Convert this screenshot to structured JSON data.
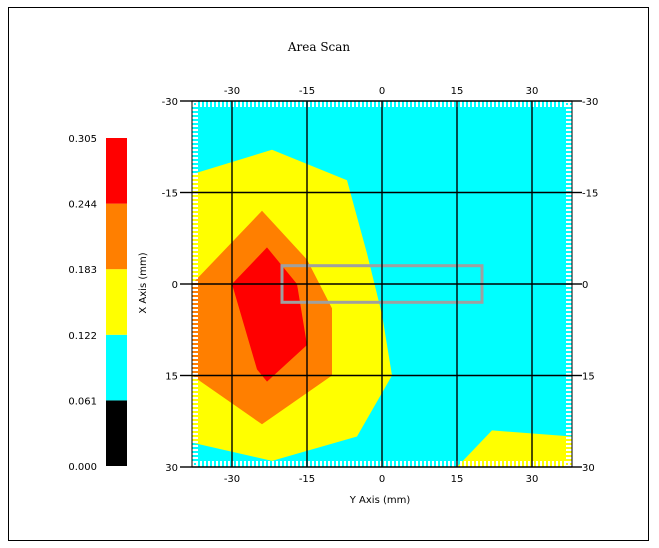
{
  "chart_data": {
    "type": "heatmap",
    "title": "Area Scan",
    "xlabel": "Y Axis (mm)",
    "ylabel": "X Axis (mm)",
    "xlim": [
      -38,
      38
    ],
    "ylim": [
      -30,
      30
    ],
    "x_ticks": [
      -30,
      -15,
      0,
      15,
      30
    ],
    "y_ticks": [
      -30,
      -15,
      0,
      15,
      30
    ],
    "x_tick_labels": [
      "-30",
      "-15",
      "0",
      "15",
      "30"
    ],
    "y_tick_labels": [
      "-30",
      "-15",
      "0",
      "15",
      "30"
    ],
    "colorbar": {
      "levels": [
        {
          "label": "0.000",
          "value": 0.0
        },
        {
          "label": "0.061",
          "value": 0.061
        },
        {
          "label": "0.122",
          "value": 0.122
        },
        {
          "label": "0.183",
          "value": 0.183
        },
        {
          "label": "0.244",
          "value": 0.244
        },
        {
          "label": "0.305",
          "value": 0.305
        }
      ],
      "colors": [
        "#000000",
        "#00ffff",
        "#ffff00",
        "#ff7f00",
        "#ff0000"
      ]
    },
    "background_color": "#00ffff",
    "contours": [
      {
        "name": "0.122-0.183",
        "color": "#ffff00",
        "points": [
          [
            -38,
            -18
          ],
          [
            -22,
            -22
          ],
          [
            -7,
            -17
          ],
          [
            -3,
            -5
          ],
          [
            0,
            5
          ],
          [
            2,
            15
          ],
          [
            -5,
            25
          ],
          [
            -22,
            29
          ],
          [
            -38,
            26
          ]
        ]
      },
      {
        "name": "0.122-0.183",
        "color": "#ffff00",
        "points": [
          [
            15,
            30
          ],
          [
            22,
            24
          ],
          [
            38,
            25
          ],
          [
            38,
            30
          ]
        ]
      },
      {
        "name": "0.183-0.244",
        "color": "#ff7f00",
        "points": [
          [
            -24,
            -12
          ],
          [
            -15,
            -4
          ],
          [
            -10,
            4
          ],
          [
            -10,
            15
          ],
          [
            -24,
            23
          ],
          [
            -38,
            15
          ],
          [
            -38,
            0
          ]
        ]
      },
      {
        "name": "0.244-0.305",
        "color": "#ff0000",
        "points": [
          [
            -23,
            -6
          ],
          [
            -17,
            0
          ],
          [
            -15,
            10
          ],
          [
            -23,
            16
          ],
          [
            -25,
            14
          ],
          [
            -30,
            0
          ]
        ]
      }
    ],
    "highlight_rect": {
      "x": [
        -20,
        20
      ],
      "y": [
        -3,
        3
      ],
      "color": "#a0a0a0"
    },
    "grid": true
  }
}
